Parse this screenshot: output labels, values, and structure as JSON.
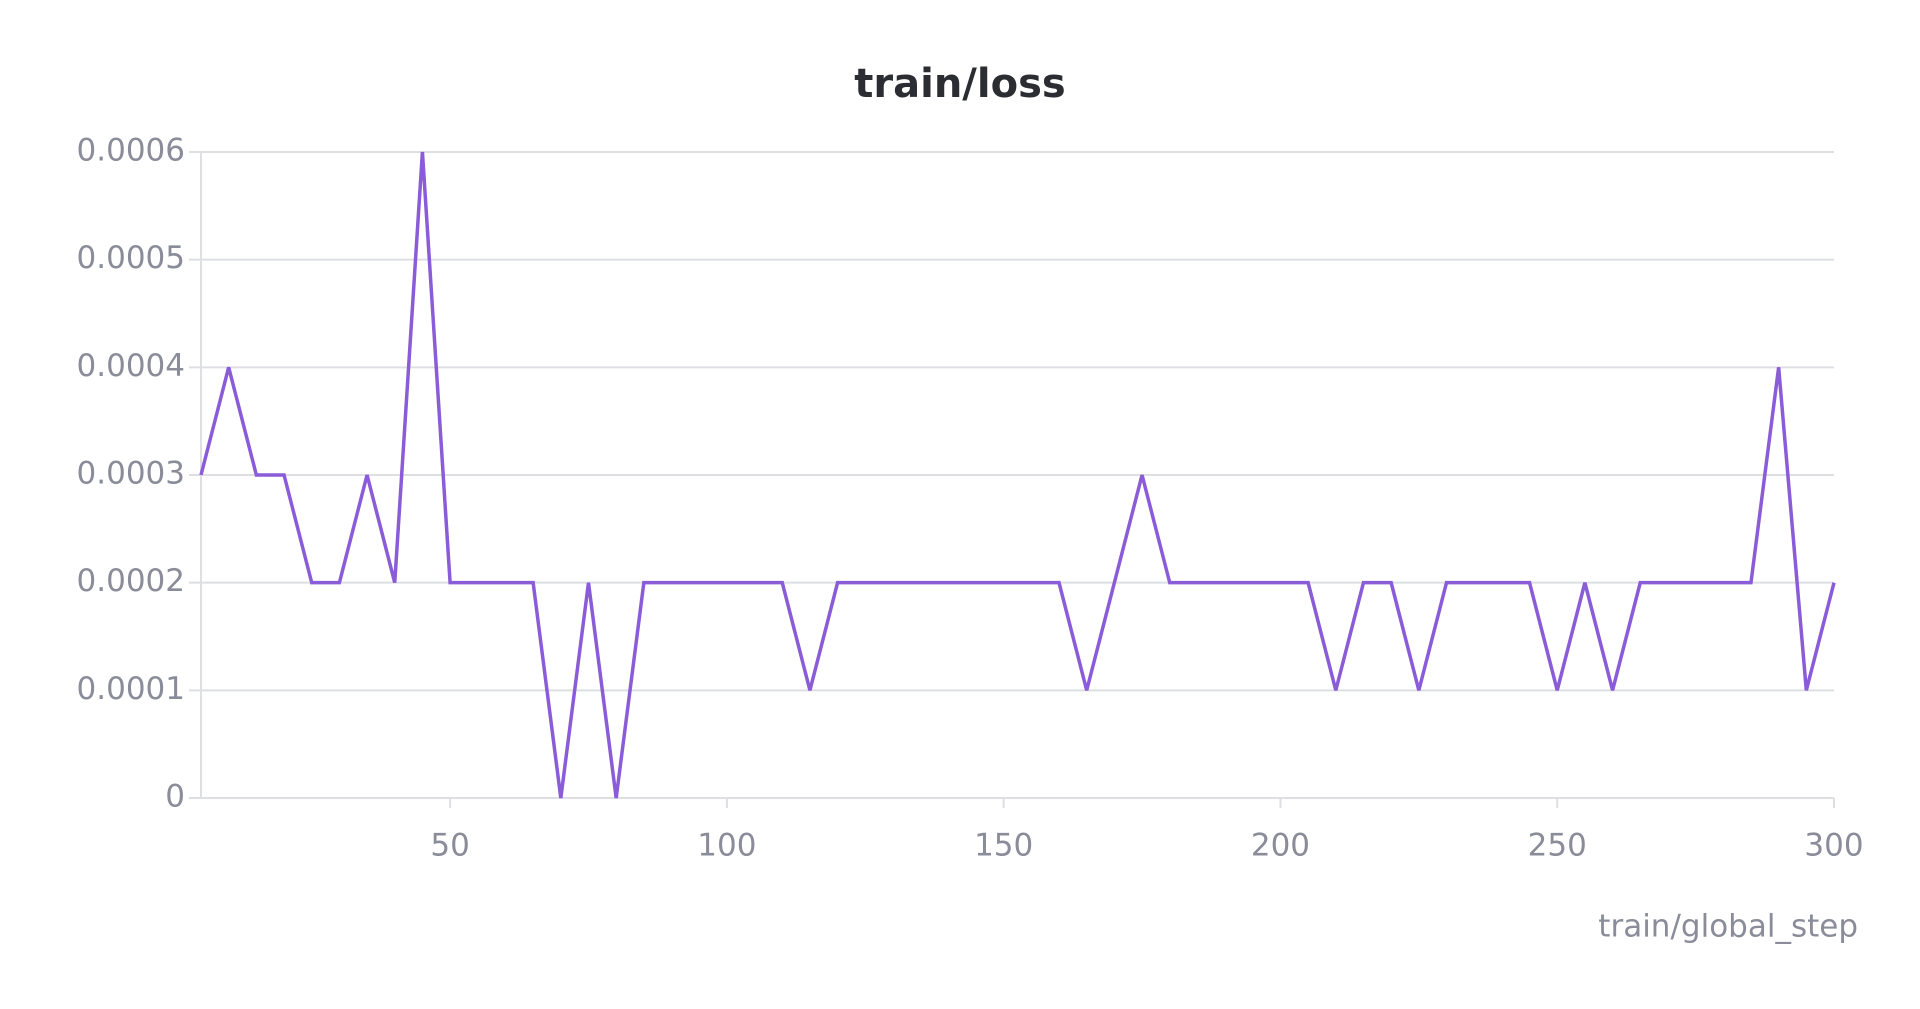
{
  "chart_data": {
    "type": "line",
    "title": "train/loss",
    "x_label": "train/global_step",
    "x": [
      5,
      10,
      15,
      20,
      25,
      30,
      35,
      40,
      45,
      50,
      55,
      60,
      65,
      70,
      75,
      80,
      85,
      90,
      95,
      100,
      105,
      110,
      115,
      120,
      125,
      130,
      135,
      140,
      145,
      150,
      155,
      160,
      165,
      170,
      175,
      180,
      185,
      190,
      195,
      200,
      205,
      210,
      215,
      220,
      225,
      230,
      235,
      240,
      245,
      250,
      255,
      260,
      265,
      270,
      275,
      280,
      285,
      290,
      295,
      300
    ],
    "series": [
      {
        "name": "train/loss",
        "color": "#8a5cd8",
        "values": [
          0.0003,
          0.0004,
          0.0003,
          0.0003,
          0.0002,
          0.0002,
          0.0003,
          0.0002,
          0.0006,
          0.0002,
          0.0002,
          0.0002,
          0.0002,
          0,
          0.0002,
          0,
          0.0002,
          0.0002,
          0.0002,
          0.0002,
          0.0002,
          0.0002,
          0.0001,
          0.0002,
          0.0002,
          0.0002,
          0.0002,
          0.0002,
          0.0002,
          0.0002,
          0.0002,
          0.0002,
          0.0001,
          0.0002,
          0.0003,
          0.0002,
          0.0002,
          0.0002,
          0.0002,
          0.0002,
          0.0002,
          0.0001,
          0.0002,
          0.0002,
          0.0001,
          0.0002,
          0.0002,
          0.0002,
          0.0002,
          0.0001,
          0.0002,
          0.0001,
          0.0002,
          0.0002,
          0.0002,
          0.0002,
          0.0002,
          0.0004,
          0.0001,
          0.0002
        ]
      }
    ],
    "xlim": [
      5,
      300
    ],
    "xticks": [
      50,
      100,
      150,
      200,
      250,
      300
    ],
    "ylim": [
      0,
      0.0006
    ],
    "yticks": [
      0,
      0.0001,
      0.0002,
      0.0003,
      0.0004,
      0.0005,
      0.0006
    ],
    "grid": true
  }
}
